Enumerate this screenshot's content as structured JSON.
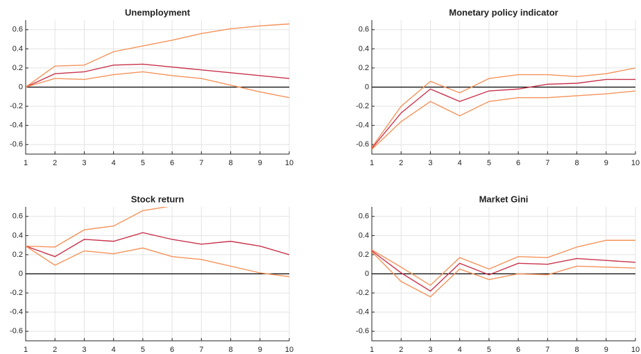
{
  "chart_data": [
    {
      "type": "line",
      "title": "Unemployment",
      "x": [
        1,
        2,
        3,
        4,
        5,
        6,
        7,
        8,
        9,
        10
      ],
      "xlim": [
        1,
        10
      ],
      "xticks": [
        1,
        2,
        3,
        4,
        5,
        6,
        7,
        8,
        9,
        10
      ],
      "ylim": [
        -0.7,
        0.7
      ],
      "yticks": [
        -0.6,
        -0.4,
        -0.2,
        0,
        0.2,
        0.4,
        0.6
      ],
      "grid": true,
      "series": [
        {
          "color": "#f4935a",
          "values": [
            0,
            0.22,
            0.23,
            0.37,
            0.43,
            0.49,
            0.56,
            0.61,
            0.64,
            0.66
          ]
        },
        {
          "color": "#c8324a",
          "values": [
            0,
            0.14,
            0.16,
            0.23,
            0.24,
            0.21,
            0.18,
            0.15,
            0.12,
            0.09
          ]
        },
        {
          "color": "#f4935a",
          "values": [
            0,
            0.09,
            0.08,
            0.13,
            0.16,
            0.12,
            0.09,
            0.02,
            -0.05,
            -0.11
          ]
        }
      ]
    },
    {
      "type": "line",
      "title": "Monetary policy indicator",
      "x": [
        1,
        2,
        3,
        4,
        5,
        6,
        7,
        8,
        9,
        10
      ],
      "xlim": [
        1,
        10
      ],
      "xticks": [
        1,
        2,
        3,
        4,
        5,
        6,
        7,
        8,
        9,
        10
      ],
      "ylim": [
        -0.7,
        0.7
      ],
      "yticks": [
        -0.6,
        -0.4,
        -0.2,
        0,
        0.2,
        0.4,
        0.6
      ],
      "grid": true,
      "series": [
        {
          "color": "#f4935a",
          "values": [
            -0.63,
            -0.2,
            0.06,
            -0.06,
            0.09,
            0.13,
            0.13,
            0.11,
            0.14,
            0.2
          ]
        },
        {
          "color": "#c8324a",
          "values": [
            -0.64,
            -0.27,
            -0.02,
            -0.15,
            -0.04,
            -0.02,
            0.03,
            0.04,
            0.08,
            0.08
          ]
        },
        {
          "color": "#f4935a",
          "values": [
            -0.65,
            -0.36,
            -0.15,
            -0.3,
            -0.15,
            -0.11,
            -0.11,
            -0.09,
            -0.07,
            -0.04
          ]
        }
      ]
    },
    {
      "type": "line",
      "title": "Stock return",
      "x": [
        1,
        2,
        3,
        4,
        5,
        6,
        7,
        8,
        9,
        10
      ],
      "xlim": [
        1,
        10
      ],
      "xticks": [
        1,
        2,
        3,
        4,
        5,
        6,
        7,
        8,
        9,
        10
      ],
      "ylim": [
        -0.7,
        0.7
      ],
      "yticks": [
        -0.6,
        -0.4,
        -0.2,
        0,
        0.2,
        0.4,
        0.6
      ],
      "grid": true,
      "series": [
        {
          "color": "#f4935a",
          "values": [
            0.29,
            0.28,
            0.46,
            0.5,
            0.66,
            0.71,
            null,
            null,
            null,
            null
          ]
        },
        {
          "color": "#c8324a",
          "values": [
            0.29,
            0.18,
            0.36,
            0.34,
            0.43,
            0.36,
            0.31,
            0.34,
            0.29,
            0.2
          ]
        },
        {
          "color": "#f4935a",
          "values": [
            0.29,
            0.09,
            0.24,
            0.21,
            0.27,
            0.18,
            0.15,
            0.08,
            0.01,
            -0.03
          ]
        }
      ]
    },
    {
      "type": "line",
      "title": "Market Gini",
      "x": [
        1,
        2,
        3,
        4,
        5,
        6,
        7,
        8,
        9,
        10
      ],
      "xlim": [
        1,
        10
      ],
      "xticks": [
        1,
        2,
        3,
        4,
        5,
        6,
        7,
        8,
        9,
        10
      ],
      "ylim": [
        -0.7,
        0.7
      ],
      "yticks": [
        -0.6,
        -0.4,
        -0.2,
        0,
        0.2,
        0.4,
        0.6
      ],
      "grid": true,
      "series": [
        {
          "color": "#f4935a",
          "values": [
            0.25,
            0.07,
            -0.12,
            0.17,
            0.05,
            0.18,
            0.17,
            0.28,
            0.35,
            0.35
          ]
        },
        {
          "color": "#c8324a",
          "values": [
            0.24,
            0.01,
            -0.18,
            0.11,
            -0.01,
            0.11,
            0.1,
            0.16,
            0.14,
            0.12
          ]
        },
        {
          "color": "#f4935a",
          "values": [
            0.23,
            -0.08,
            -0.24,
            0.05,
            -0.06,
            0,
            -0.01,
            0.08,
            0.07,
            0.06
          ]
        }
      ]
    }
  ]
}
